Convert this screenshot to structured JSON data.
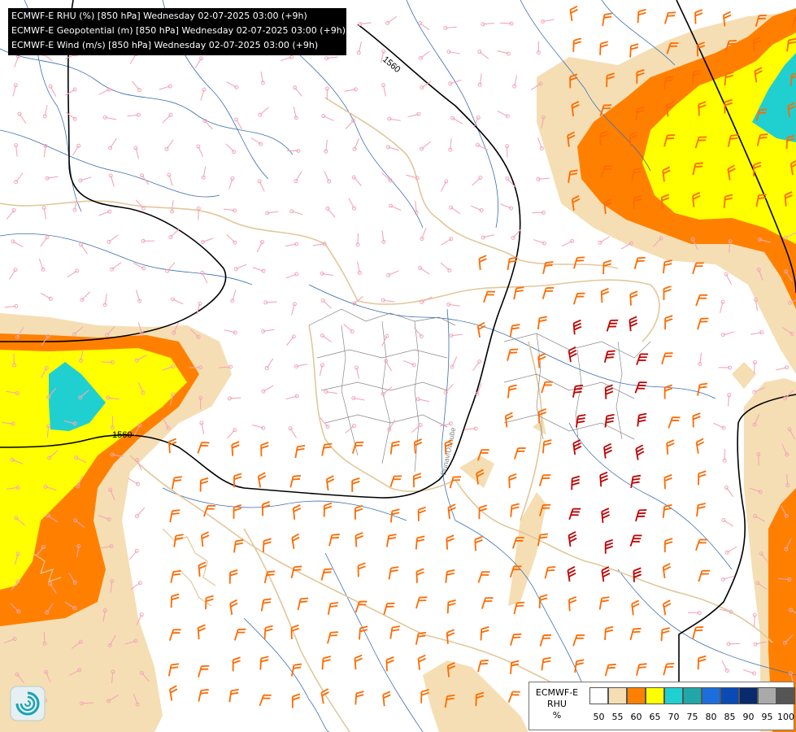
{
  "header": {
    "lines": [
      "ECMWF-E RHU (%) [850 hPa] Wednesday 02-07-2025 03:00 (+9h)",
      "ECMWF-E Geopotential (m) [850 hPa] Wednesday 02-07-2025 03:00 (+9h)",
      "ECMWF-E Wind (m/s) [850 hPa] Wednesday 02-07-2025 03:00 (+9h)"
    ]
  },
  "map": {
    "contour_label": "1560",
    "river_label": "Dunav/Danube",
    "colors": {
      "rhu_55": "#f5deb3",
      "rhu_60": "#ff8000",
      "rhu_65": "#ffff00",
      "rhu_70": "#20d0d0",
      "wind_weak": "#f4a6b8",
      "wind_moderate": "#ff6a00",
      "wind_strong": "#c00000",
      "border": "#e2c79a",
      "river": "#3a6db5",
      "admin": "#888888",
      "contour": "#000000"
    }
  },
  "legend": {
    "title_lines": [
      "ECMWF-E",
      "RHU",
      "%"
    ],
    "values": [
      "50",
      "55",
      "60",
      "65",
      "70",
      "75",
      "80",
      "85",
      "90",
      "95",
      "100"
    ],
    "colors": [
      "#ffffff",
      "#f5deb3",
      "#ff8000",
      "#ffff00",
      "#20d0d0",
      "#20a8a8",
      "#1b6fdc",
      "#0a4ab5",
      "#0a2a6e",
      "#aaaaaa",
      "#555555"
    ]
  },
  "logo": {
    "icon": "swirl-logo-icon"
  }
}
